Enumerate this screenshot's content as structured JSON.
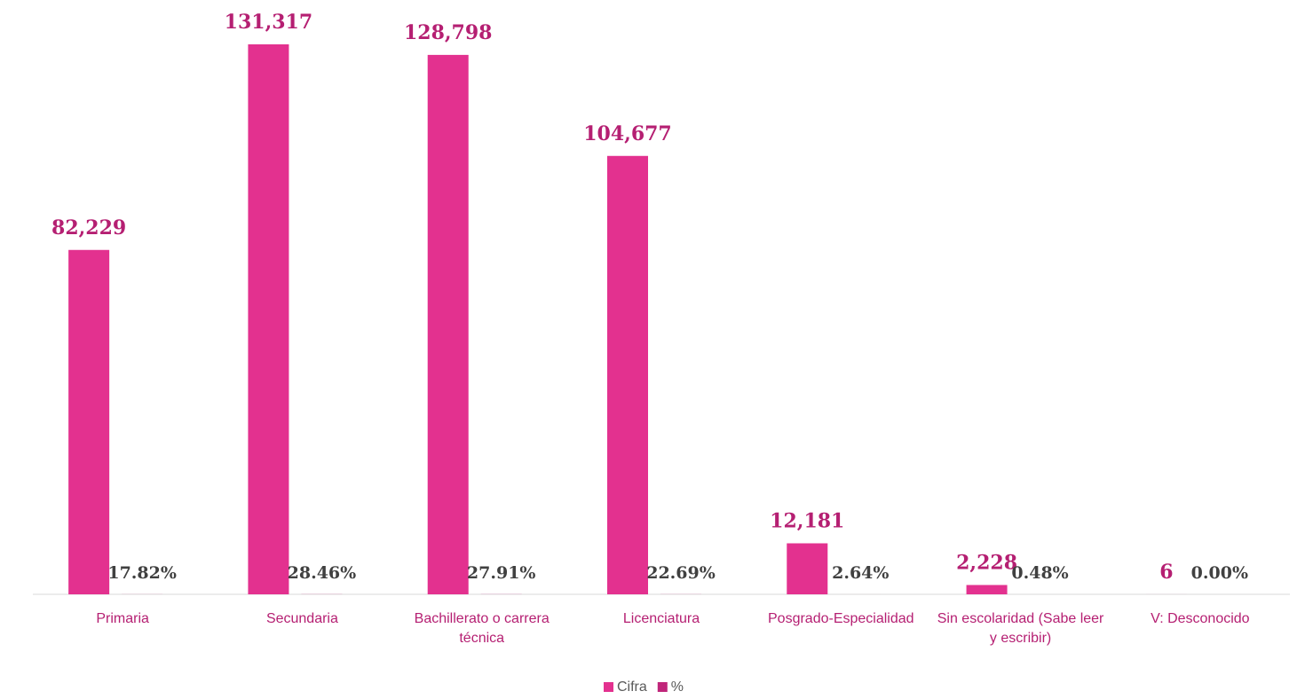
{
  "chart_data": {
    "type": "bar",
    "categories": [
      "Primaria",
      "Secundaria",
      "Bachillerato o carrera técnica",
      "Licenciatura",
      "Posgrado-Especialidad",
      "Sin escolaridad (Sabe leer y escribir)",
      "V: Desconocido"
    ],
    "series": [
      {
        "name": "Cifra",
        "color": "#e3318f",
        "values": [
          82229,
          131317,
          128798,
          104677,
          12181,
          2228,
          6
        ],
        "value_labels": [
          "82,229",
          "131,317",
          "128,798",
          "104,677",
          "12,181",
          "2,228",
          "6"
        ]
      },
      {
        "name": "%",
        "color": "#c0267a",
        "values": [
          17.82,
          28.46,
          27.91,
          22.69,
          2.64,
          0.48,
          0.0
        ],
        "value_labels": [
          "17.82%",
          "28.46%",
          "27.91%",
          "22.69%",
          "2.64%",
          "0.48%",
          "0.00%"
        ]
      }
    ],
    "ylim": [
      0,
      140000
    ],
    "legend": "bottom"
  }
}
